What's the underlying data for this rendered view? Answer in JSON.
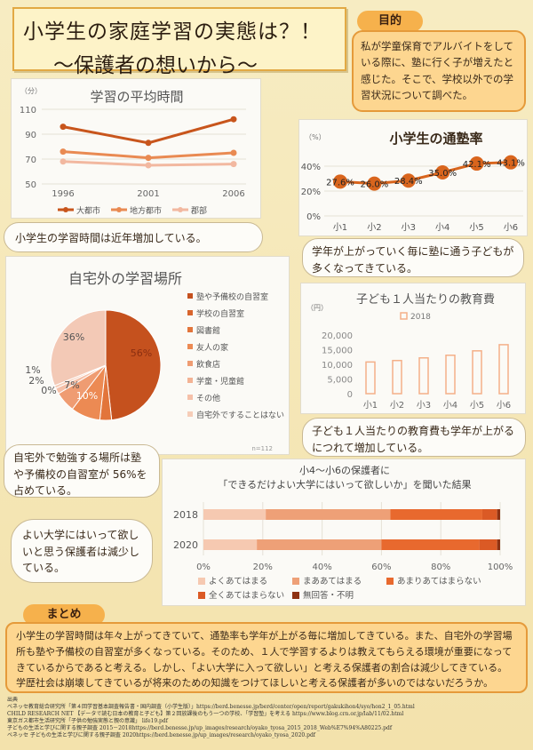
{
  "title": {
    "line1": "小学生の家庭学習の実態は？！",
    "line2": "〜保護者の想いから〜"
  },
  "purpose": {
    "label": "目的",
    "text": "私が学童保育でアルバイトをしている際に、塾に行く子が増えたと感じた。そこで、学校以外での学習状況について調べた。"
  },
  "study_time": {
    "bubble": "小学生の学習時間は近年増加している。",
    "chart_data": {
      "type": "line",
      "title": "学習の平均時間",
      "ylabel": "（分）",
      "x": [
        "1996",
        "2001",
        "2006"
      ],
      "ylim": [
        50,
        110
      ],
      "yticks": [
        "110",
        "90",
        "70",
        "50"
      ],
      "series": [
        {
          "name": "大都市",
          "values": [
            96,
            83,
            102
          ],
          "color": "#c8551c"
        },
        {
          "name": "地方都市",
          "values": [
            76,
            71,
            75
          ],
          "color": "#e98a52"
        },
        {
          "name": "郡部",
          "values": [
            68,
            65,
            66
          ],
          "color": "#f2b8a0"
        }
      ]
    }
  },
  "juku_rate": {
    "bubble": "学年が上がっていく毎に塾に通う子どもが多くなってきている。",
    "chart_data": {
      "type": "line",
      "title": "小学生の通塾率",
      "ylabel": "（%）",
      "categories": [
        "小1",
        "小2",
        "小3",
        "小4",
        "小5",
        "小6"
      ],
      "yticks": [
        "40%",
        "20%",
        "0%"
      ],
      "values": [
        27.6,
        26.0,
        28.4,
        35.0,
        42.1,
        43.1
      ],
      "labels": [
        "27.6%",
        "26.0%",
        "28.4%",
        "35.0%",
        "42.1%",
        "43.1%"
      ],
      "ylim": [
        0,
        50
      ],
      "color": "#d9651d"
    }
  },
  "places": {
    "bubble": "自宅外で勉強する場所は塾や予備校の自習室が 56%を占めている。",
    "note": "n=112",
    "chart_data": {
      "type": "pie",
      "title": "自宅外の学習場所",
      "slices": [
        {
          "name": "塾や予備校の自習室",
          "value": 56,
          "label": "56%",
          "color": "#c5511e"
        },
        {
          "name": "学校の自習室",
          "value": 0,
          "label": "",
          "color": "#d8652d"
        },
        {
          "name": "図書館",
          "value": 4,
          "label": "",
          "color": "#e2753b"
        },
        {
          "name": "友人の家",
          "value": 10,
          "label": "10%",
          "color": "#ec8a53"
        },
        {
          "name": "飲食店",
          "value": 7,
          "label": "7%",
          "color": "#ef9c72"
        },
        {
          "name": "学童・児童館",
          "value": 0,
          "label": "0%",
          "color": "#f3b394"
        },
        {
          "name": "その他",
          "value": 2,
          "label": "2%",
          "color": "#f5c0a8"
        },
        {
          "name": "自宅外ですることはない",
          "value": 1,
          "label": "1%",
          "color": "#f6cdb8"
        },
        {
          "name": "",
          "value": 36,
          "label": "36%",
          "color": "#f3c9b6"
        }
      ]
    }
  },
  "education_cost": {
    "bubble": "子ども１人当たりの教育費も学年が上がるにつれて増加している。",
    "chart_data": {
      "type": "bar",
      "title": "子ども１人当たりの教育費",
      "ylabel": "（円）",
      "categories": [
        "小1",
        "小2",
        "小3",
        "小4",
        "小5",
        "小6"
      ],
      "yticks": [
        "20,000",
        "15,000",
        "10,000",
        "5,000",
        "0"
      ],
      "ylim": [
        0,
        20000
      ],
      "series": [
        {
          "name": "2018",
          "values": [
            10800,
            11300,
            12200,
            13100,
            14600,
            16700
          ]
        }
      ],
      "color": "#f4b089"
    }
  },
  "university": {
    "bubble": "よい大学にはいって欲しいと思う保護者は減少している。",
    "chart_data": {
      "type": "bar",
      "title": "小4〜小6の保護者に",
      "subtitle": "「できるだけよい大学にはいって欲しいか」を聞いた結果",
      "categories": [
        "2018",
        "2020"
      ],
      "xticks": [
        "0%",
        "20%",
        "40%",
        "60%",
        "80%",
        "100%"
      ],
      "series": [
        {
          "name": "よくあてはまる",
          "values": [
            21,
            18
          ],
          "color": "#f6c9b1"
        },
        {
          "name": "まああてはまる",
          "values": [
            42,
            42
          ],
          "color": "#eea077"
        },
        {
          "name": "あまりあてはまらない",
          "values": [
            31,
            33
          ],
          "color": "#e8692e"
        },
        {
          "name": "全くあてはまらない",
          "values": [
            5,
            6
          ],
          "color": "#db5a25"
        },
        {
          "name": "無回答・不明",
          "values": [
            1,
            1
          ],
          "color": "#8e3212"
        }
      ]
    }
  },
  "summary": {
    "label": "まとめ",
    "text": "小学生の学習時間は年々上がってきていて、通塾率も学年が上がる毎に増加してきている。また、自宅外の学習場所も塾や予備校の自習室が多くなっている。そのため、１人で学習するよりは教えてもらえる環境が重要になってきているからであると考える。しかし、「よい大学に入って欲しい」と考える保護者の割合は減少してきている。学歴社会は崩壊してきているが将来のための知識をつけてほしいと考える保護者が多いのではないだろうか。"
  },
  "sources": {
    "heading": "出典",
    "lines": [
      "ベネッセ教育総合研究所「第４回学習基本調査報告書・国内調査（小学生版）」https://berd.benesse.jp/berd/center/open/report/gakukihon4/syo/hon2_1_05.html",
      "CHILD RESEARCH NET 【データで読む日本の教育と子ども】第２回放課後のもう一つの学校、「学習塾」を考える https://www.blog.crn.or.jp/lab/11/02.html",
      "東京ガス都市生活研究所「子供の勉強実態と親の意識」 life19.pdf",
      "子どもの生活と学びに関する親子調査 2015－2018https://berd.benesse.jp/up_images/research/oyako_tyosa_2015_2018_Web%E7%94%A80225.pdf",
      "ベネッセ 子どもの生活と学びに関する親子調査 2020https://berd.benesse.jp/up_images/research/oyako_tyosa_2020.pdf"
    ]
  }
}
